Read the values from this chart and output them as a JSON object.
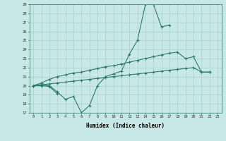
{
  "xlabel": "Humidex (Indice chaleur)",
  "bg_color": "#c8e8e8",
  "grid_color": "#a8d0d0",
  "line_color": "#2a7a6a",
  "x_values": [
    0,
    1,
    2,
    3,
    4,
    5,
    6,
    7,
    8,
    9,
    10,
    11,
    12,
    13,
    14,
    15,
    16,
    17,
    18,
    19,
    20,
    21,
    22,
    23
  ],
  "line1": [
    20.0,
    20.1,
    20.0,
    19.3,
    18.5,
    18.8,
    17.0,
    17.8,
    20.0,
    21.0,
    21.3,
    21.6,
    23.5,
    25.0,
    29.0,
    29.0,
    26.5,
    26.7,
    null,
    null,
    null,
    null,
    null,
    null
  ],
  "line2": [
    20.0,
    20.0,
    19.9,
    19.1,
    null,
    null,
    null,
    null,
    null,
    null,
    null,
    null,
    null,
    null,
    null,
    null,
    null,
    null,
    null,
    null,
    null,
    null,
    null,
    null
  ],
  "line3": [
    20.0,
    20.3,
    20.7,
    21.0,
    21.2,
    21.4,
    21.5,
    21.7,
    21.9,
    22.1,
    22.2,
    22.4,
    22.6,
    22.8,
    23.0,
    23.2,
    23.4,
    23.6,
    23.7,
    23.0,
    23.2,
    21.5,
    21.5,
    null
  ],
  "line4": [
    20.0,
    20.1,
    20.2,
    20.3,
    20.4,
    20.5,
    20.6,
    20.7,
    20.8,
    20.9,
    21.0,
    21.1,
    21.2,
    21.3,
    21.4,
    21.5,
    21.6,
    21.7,
    21.8,
    21.9,
    22.0,
    21.5,
    21.5,
    null
  ],
  "ylim": [
    17,
    29
  ],
  "xlim": [
    -0.5,
    23.5
  ],
  "yticks": [
    17,
    18,
    19,
    20,
    21,
    22,
    23,
    24,
    25,
    26,
    27,
    28,
    29
  ],
  "xticks": [
    0,
    1,
    2,
    3,
    4,
    5,
    6,
    7,
    8,
    9,
    10,
    11,
    12,
    13,
    14,
    15,
    16,
    17,
    18,
    19,
    20,
    21,
    22,
    23
  ]
}
